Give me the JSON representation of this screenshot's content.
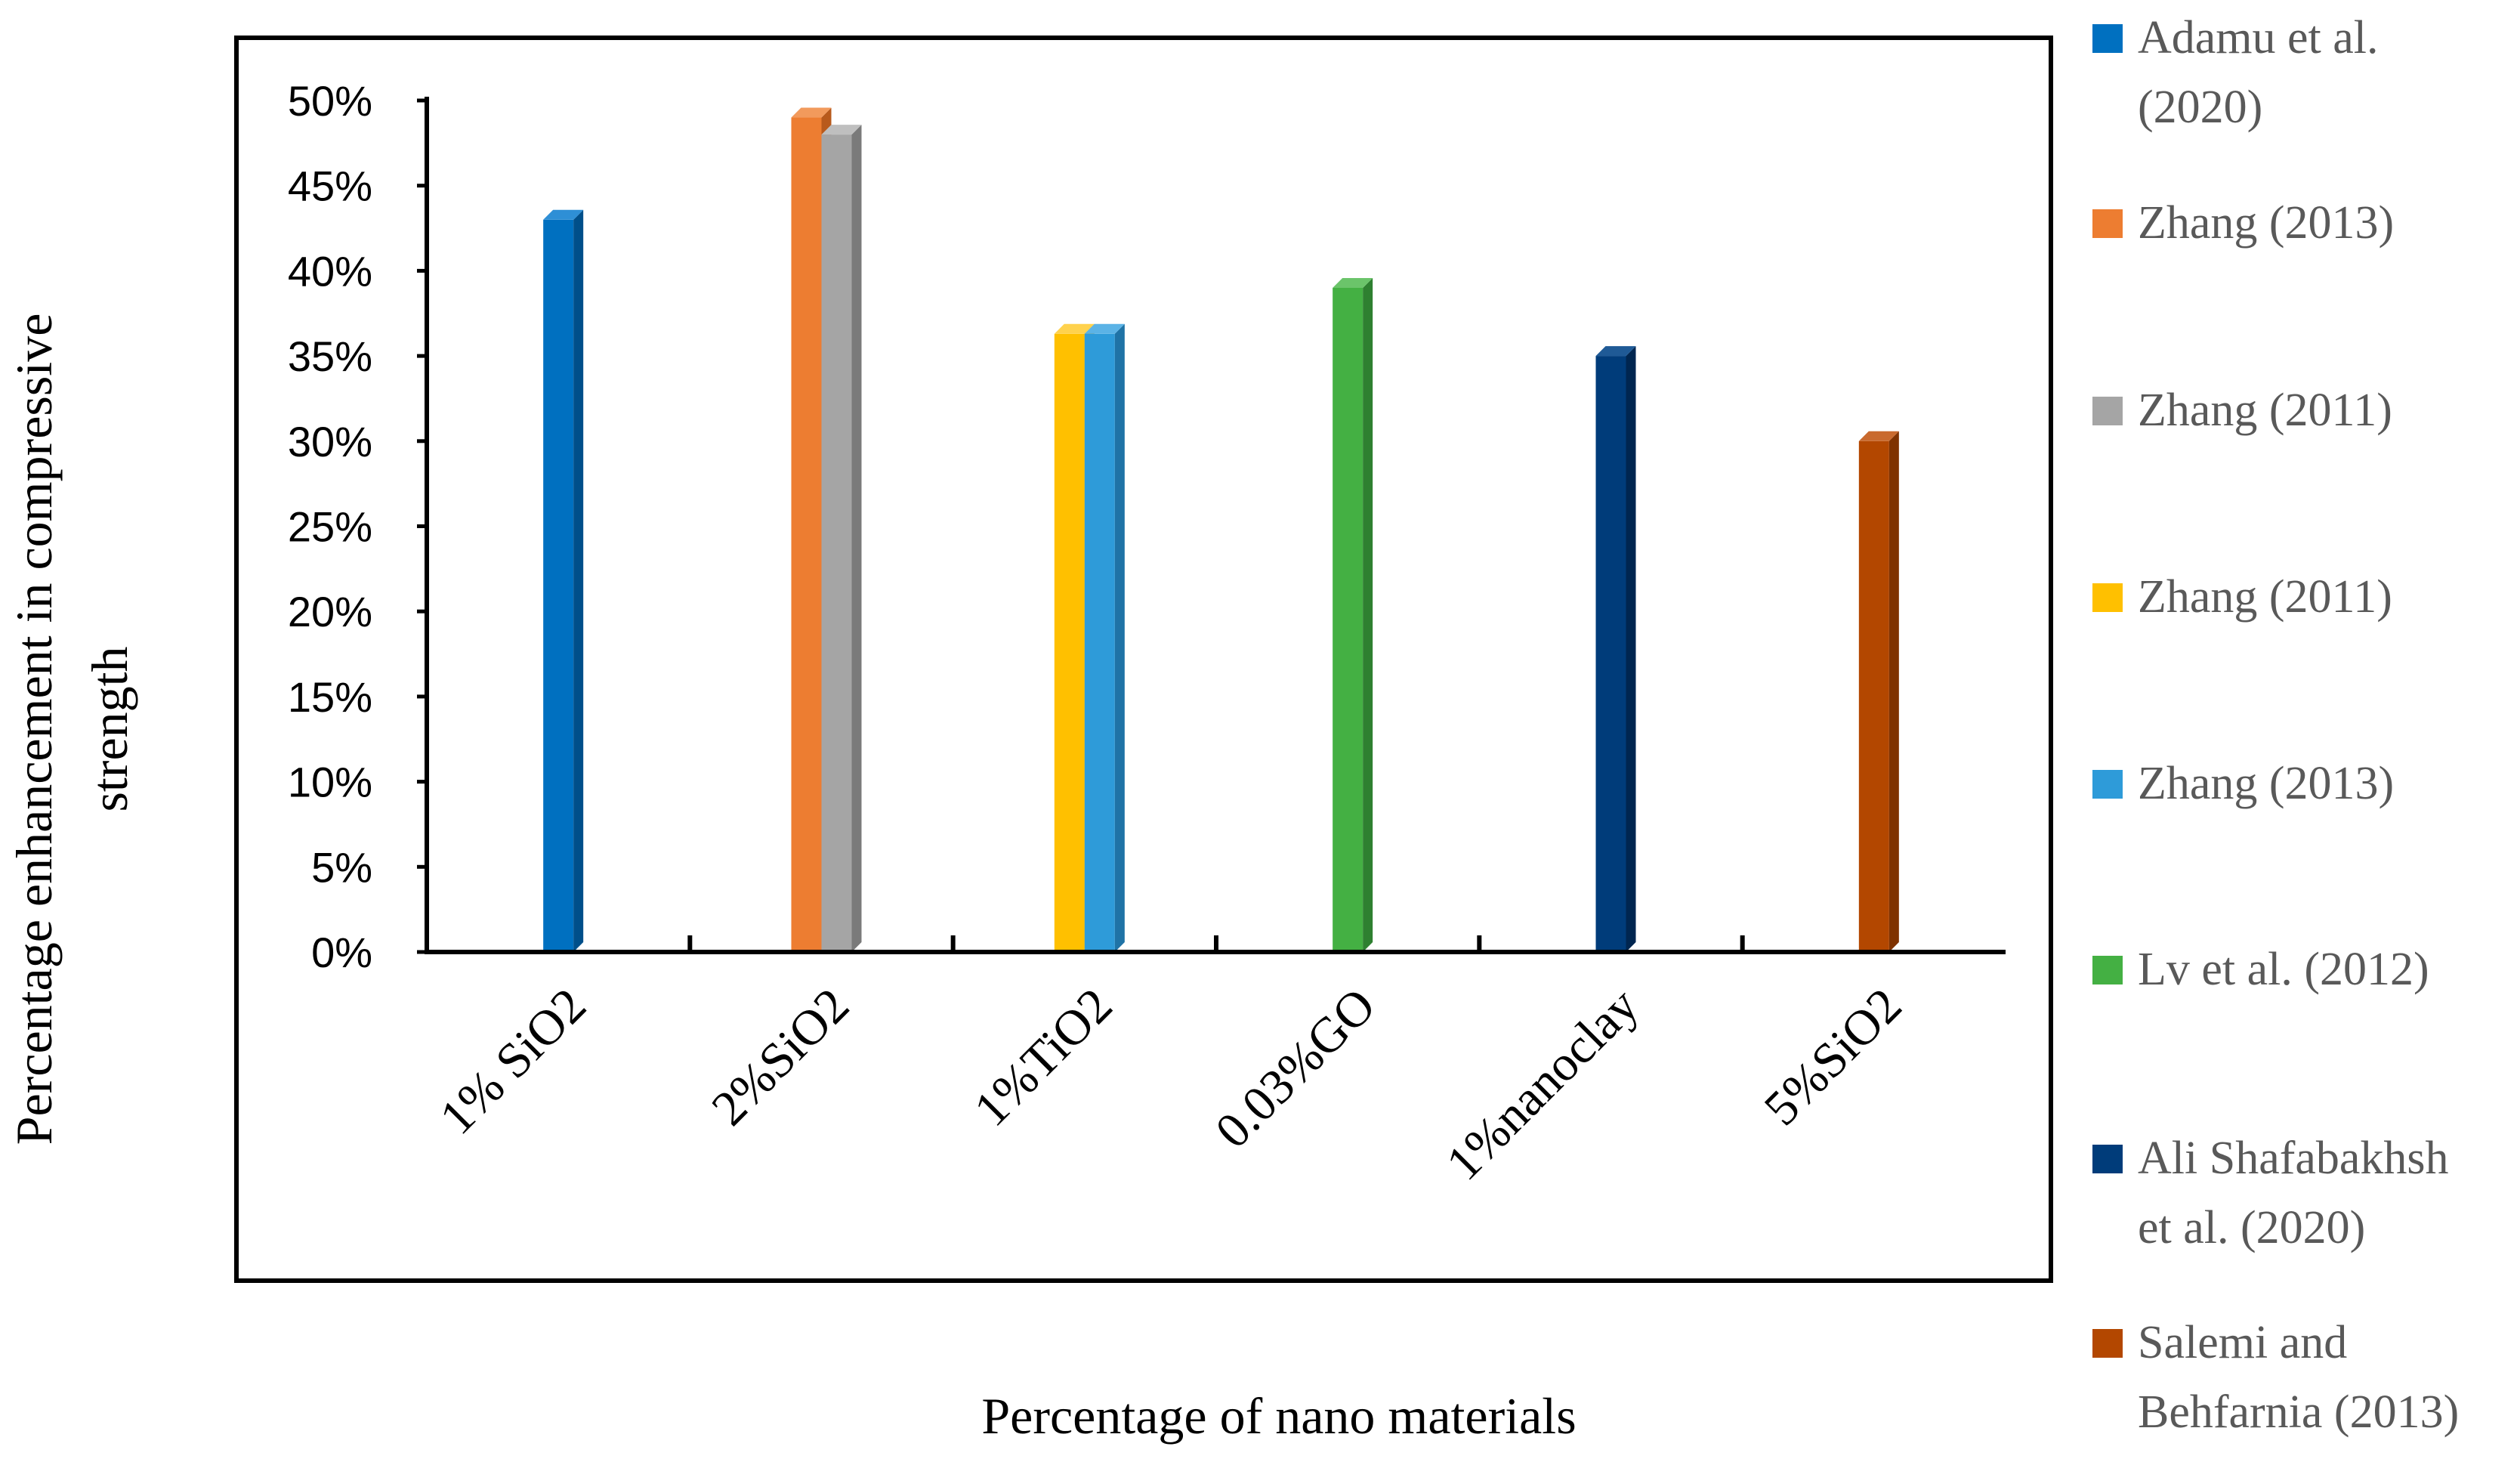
{
  "chart_data": {
    "type": "bar",
    "title": "",
    "xlabel": "Percentage of nano materials",
    "ylabel_lines": [
      "Percentage enhancement in compressive",
      "strength"
    ],
    "ylim": [
      0,
      50
    ],
    "y_ticks": [
      0,
      5,
      10,
      15,
      20,
      25,
      30,
      35,
      40,
      45,
      50
    ],
    "y_tick_labels": [
      "0%",
      "5%",
      "10%",
      "15%",
      "20%",
      "25%",
      "30%",
      "35%",
      "40%",
      "45%",
      "50%"
    ],
    "categories": [
      "1% SiO2",
      "2%SiO2",
      "1%TiO2",
      "0.03%GO",
      "1%nanoclay",
      "5%SiO2"
    ],
    "legend_position": "right",
    "series": [
      {
        "name_lines": [
          "Adamu et al.",
          "(2020)"
        ],
        "color": "#0070C0",
        "side": "#004F8A",
        "top": "#2E8FD6",
        "category_index": 0,
        "slot": 0,
        "slots": 1,
        "value": 43
      },
      {
        "name_lines": [
          "Zhang (2013)"
        ],
        "color": "#ED7D31",
        "side": "#B85A1C",
        "top": "#F29A5C",
        "category_index": 1,
        "slot": 0,
        "slots": 2,
        "value": 49
      },
      {
        "name_lines": [
          "Zhang (2011)"
        ],
        "color": "#A5A5A5",
        "side": "#7A7A7A",
        "top": "#BFBFBF",
        "category_index": 1,
        "slot": 1,
        "slots": 2,
        "value": 48
      },
      {
        "name_lines": [
          "Zhang (2011)"
        ],
        "color": "#FFC000",
        "side": "#C99500",
        "top": "#FFD24D",
        "category_index": 2,
        "slot": 0,
        "slots": 2,
        "value": 36.3
      },
      {
        "name_lines": [
          "Zhang (2013)"
        ],
        "color": "#2E9BD9",
        "side": "#1F73A6",
        "top": "#5BB3E6",
        "category_index": 2,
        "slot": 1,
        "slots": 2,
        "value": 36.3
      },
      {
        "name_lines": [
          "Lv et al. (2012)"
        ],
        "color": "#44B043",
        "side": "#2E8030",
        "top": "#6BC46A",
        "category_index": 3,
        "slot": 0,
        "slots": 1,
        "value": 39
      },
      {
        "name_lines": [
          "Ali Shafabakhsh",
          "et al. (2020)"
        ],
        "color": "#003C7A",
        "side": "#002650",
        "top": "#1F5A96",
        "category_index": 4,
        "slot": 0,
        "slots": 1,
        "value": 35
      },
      {
        "name_lines": [
          "Salemi and",
          "Behfarnia (2013)"
        ],
        "color": "#B34700",
        "side": "#7F3200",
        "top": "#C96A2E",
        "category_index": 5,
        "slot": 0,
        "slots": 1,
        "value": 30
      }
    ]
  }
}
